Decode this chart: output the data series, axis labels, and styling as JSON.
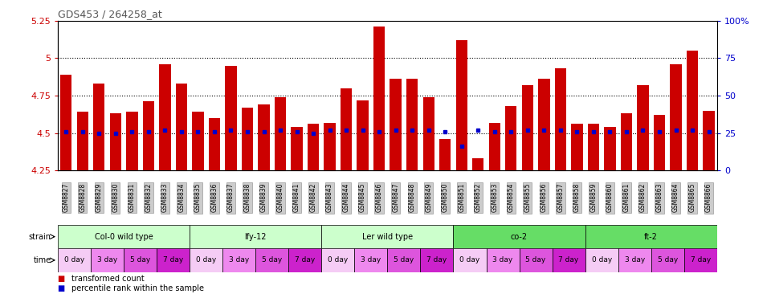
{
  "title": "GDS453 / 264258_at",
  "ylim": [
    4.25,
    5.25
  ],
  "yticks": [
    4.25,
    4.5,
    4.75,
    5.0,
    5.25
  ],
  "ytick_labels": [
    "4.25",
    "4.5",
    "4.75",
    "5",
    "5.25"
  ],
  "right_yticks": [
    0,
    25,
    50,
    75,
    100
  ],
  "right_ytick_labels": [
    "0",
    "25",
    "50",
    "75",
    "100%"
  ],
  "hlines": [
    5.0,
    4.75,
    4.5
  ],
  "samples": [
    "GSM8827",
    "GSM8828",
    "GSM8829",
    "GSM8830",
    "GSM8831",
    "GSM8832",
    "GSM8833",
    "GSM8834",
    "GSM8835",
    "GSM8836",
    "GSM8837",
    "GSM8838",
    "GSM8839",
    "GSM8840",
    "GSM8841",
    "GSM8842",
    "GSM8843",
    "GSM8844",
    "GSM8845",
    "GSM8846",
    "GSM8847",
    "GSM8848",
    "GSM8849",
    "GSM8850",
    "GSM8851",
    "GSM8852",
    "GSM8853",
    "GSM8854",
    "GSM8855",
    "GSM8856",
    "GSM8857",
    "GSM8858",
    "GSM8859",
    "GSM8860",
    "GSM8861",
    "GSM8862",
    "GSM8863",
    "GSM8864",
    "GSM8865",
    "GSM8866"
  ],
  "bar_values": [
    4.89,
    4.64,
    4.83,
    4.63,
    4.64,
    4.71,
    4.96,
    4.83,
    4.64,
    4.6,
    4.95,
    4.67,
    4.69,
    4.74,
    4.54,
    4.56,
    4.57,
    4.8,
    4.72,
    5.21,
    4.86,
    4.86,
    4.74,
    4.46,
    5.12,
    4.33,
    4.57,
    4.68,
    4.82,
    4.86,
    4.93,
    4.56,
    4.56,
    4.54,
    4.63,
    4.82,
    4.62,
    4.96,
    5.05,
    4.65
  ],
  "percentile_values": [
    4.51,
    4.51,
    4.5,
    4.5,
    4.51,
    4.51,
    4.52,
    4.51,
    4.51,
    4.51,
    4.52,
    4.51,
    4.51,
    4.52,
    4.51,
    4.5,
    4.52,
    4.52,
    4.52,
    4.51,
    4.52,
    4.52,
    4.52,
    4.51,
    4.41,
    4.52,
    4.51,
    4.51,
    4.52,
    4.52,
    4.52,
    4.51,
    4.51,
    4.51,
    4.51,
    4.52,
    4.51,
    4.52,
    4.52,
    4.51
  ],
  "bar_color": "#cc0000",
  "percentile_color": "#0000cc",
  "strains": [
    {
      "name": "Col-0 wild type",
      "start": 0,
      "end": 8,
      "color": "#ccffcc"
    },
    {
      "name": "lfy-12",
      "start": 8,
      "end": 16,
      "color": "#ccffcc"
    },
    {
      "name": "Ler wild type",
      "start": 16,
      "end": 24,
      "color": "#ccffcc"
    },
    {
      "name": "co-2",
      "start": 24,
      "end": 32,
      "color": "#66dd66"
    },
    {
      "name": "ft-2",
      "start": 32,
      "end": 40,
      "color": "#66dd66"
    }
  ],
  "time_groups": [
    {
      "label": "0 day",
      "start": 0,
      "end": 2,
      "color": "#f5ccf5"
    },
    {
      "label": "3 day",
      "start": 2,
      "end": 4,
      "color": "#ee88ee"
    },
    {
      "label": "5 day",
      "start": 4,
      "end": 6,
      "color": "#dd55dd"
    },
    {
      "label": "7 day",
      "start": 6,
      "end": 8,
      "color": "#cc22cc"
    },
    {
      "label": "0 day",
      "start": 8,
      "end": 10,
      "color": "#f5ccf5"
    },
    {
      "label": "3 day",
      "start": 10,
      "end": 12,
      "color": "#ee88ee"
    },
    {
      "label": "5 day",
      "start": 12,
      "end": 14,
      "color": "#dd55dd"
    },
    {
      "label": "7 day",
      "start": 14,
      "end": 16,
      "color": "#cc22cc"
    },
    {
      "label": "0 day",
      "start": 16,
      "end": 18,
      "color": "#f5ccf5"
    },
    {
      "label": "3 day",
      "start": 18,
      "end": 20,
      "color": "#ee88ee"
    },
    {
      "label": "5 day",
      "start": 20,
      "end": 22,
      "color": "#dd55dd"
    },
    {
      "label": "7 day",
      "start": 22,
      "end": 24,
      "color": "#cc22cc"
    },
    {
      "label": "0 day",
      "start": 24,
      "end": 26,
      "color": "#f5ccf5"
    },
    {
      "label": "3 day",
      "start": 26,
      "end": 28,
      "color": "#ee88ee"
    },
    {
      "label": "5 day",
      "start": 28,
      "end": 30,
      "color": "#dd55dd"
    },
    {
      "label": "7 day",
      "start": 30,
      "end": 32,
      "color": "#cc22cc"
    },
    {
      "label": "0 day",
      "start": 32,
      "end": 34,
      "color": "#f5ccf5"
    },
    {
      "label": "3 day",
      "start": 34,
      "end": 36,
      "color": "#ee88ee"
    },
    {
      "label": "5 day",
      "start": 36,
      "end": 38,
      "color": "#dd55dd"
    },
    {
      "label": "7 day",
      "start": 38,
      "end": 40,
      "color": "#cc22cc"
    }
  ],
  "legend_items": [
    {
      "label": "transformed count",
      "color": "#cc0000"
    },
    {
      "label": "percentile rank within the sample",
      "color": "#0000cc"
    }
  ],
  "ylabel_color": "#cc0000",
  "right_ylabel_color": "#0000cc",
  "title_color": "#555555",
  "bar_bottom": 4.25,
  "tick_label_bg": "#cccccc",
  "time_text_colors": {
    "0 day": "black",
    "3 day": "black",
    "5 day": "black",
    "7 day": "black"
  }
}
